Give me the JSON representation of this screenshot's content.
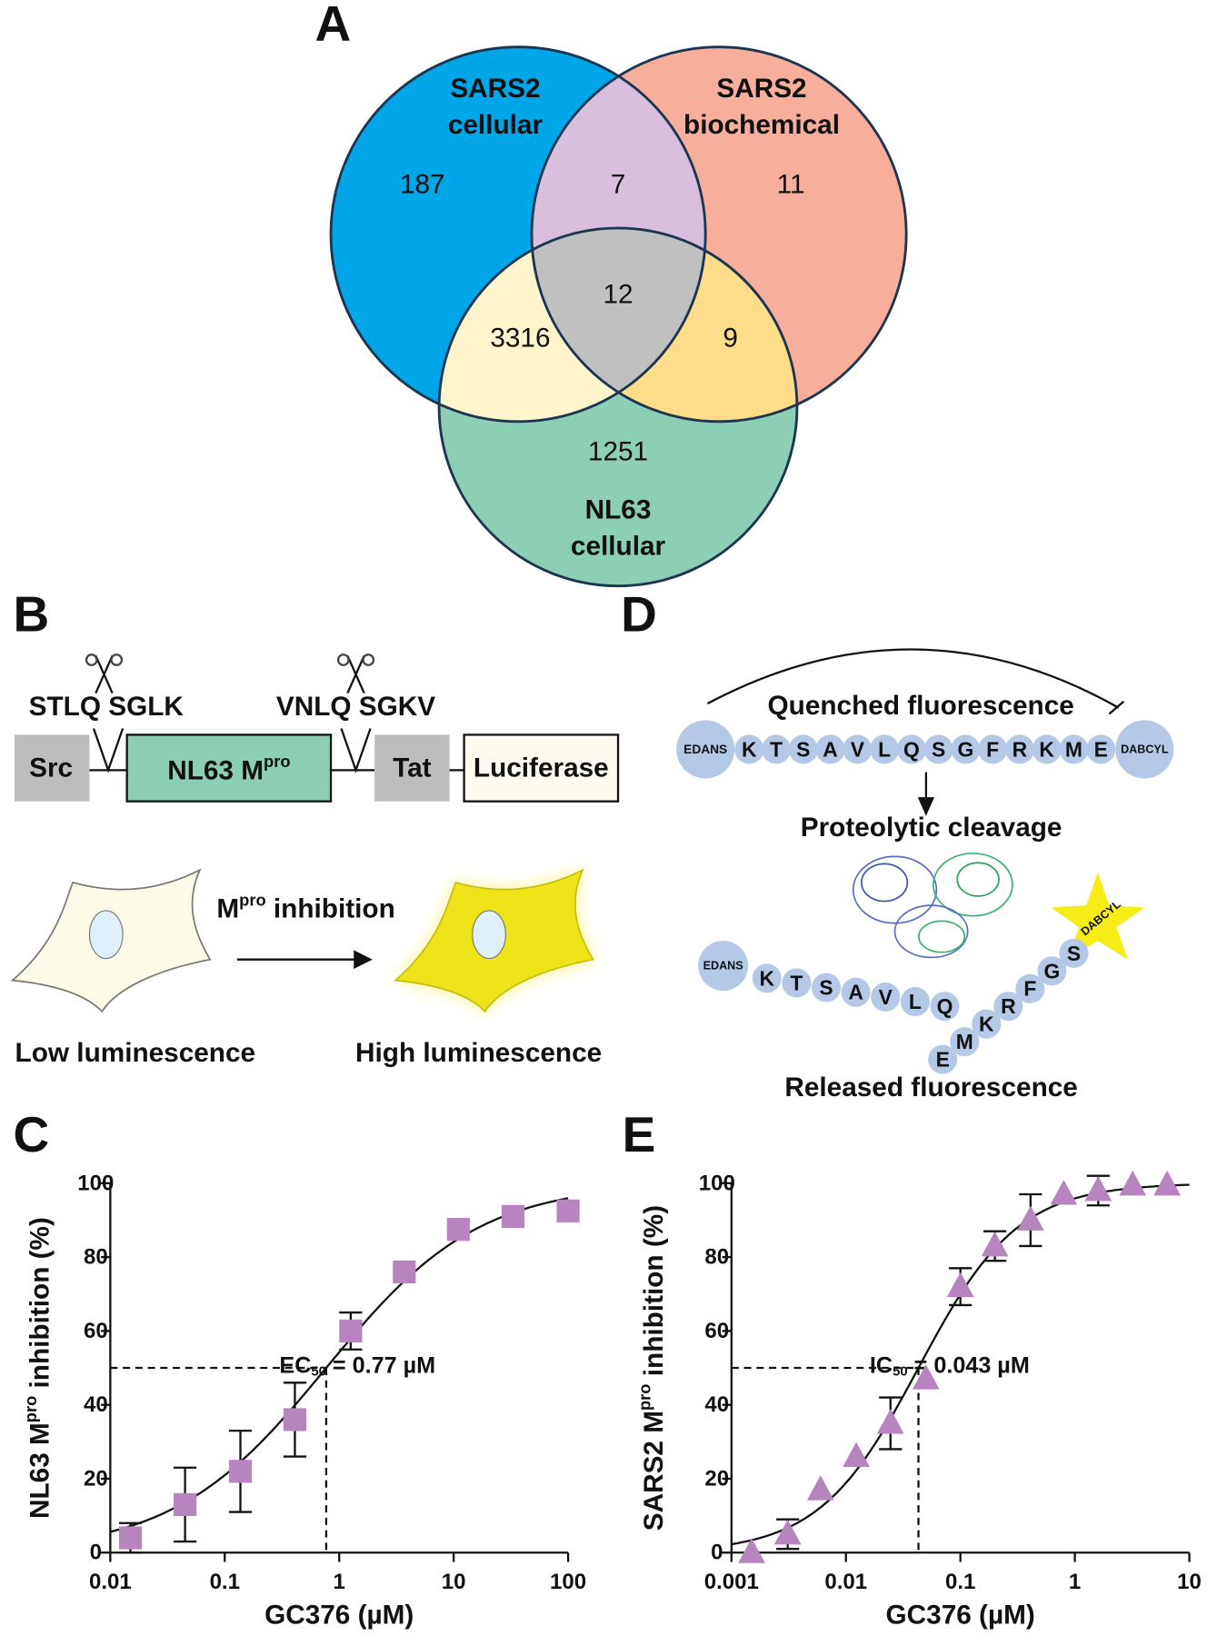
{
  "panel_labels": [
    "A",
    "B",
    "C",
    "D",
    "E"
  ],
  "venn": {
    "sets": [
      {
        "label_lines": [
          "SARS2",
          "cellular"
        ],
        "color": "#00a6e8"
      },
      {
        "label_lines": [
          "SARS2",
          "biochemical"
        ],
        "color": "#f7ae9a"
      },
      {
        "label_lines": [
          "NL63",
          "cellular"
        ],
        "color": "#8ccfb4"
      }
    ],
    "counts": {
      "sars2_cellular_only": 187,
      "sars2_cellular_biochemical": 7,
      "sars2_biochemical_only": 11,
      "all_three": 12,
      "sars2_cellular_nl63": 3316,
      "sars2_biochemical_nl63": 9,
      "nl63_only": 1251
    }
  },
  "panel_b": {
    "sites": [
      "STLQ SGLK",
      "VNLQ SGKV"
    ],
    "boxes": {
      "src": "Src",
      "mpro": {
        "text": "NL63 M",
        "sup": "pro"
      },
      "tat": "Tat",
      "luciferase": "Luciferase"
    },
    "inhibition": {
      "text": "M",
      "sup": "pro",
      "rest": " inhibition"
    },
    "low": "Low luminescence",
    "high": "High luminescence"
  },
  "panel_d": {
    "quenched": "Quenched fluorescence",
    "donor": "EDANS",
    "acceptor": "DABCYL",
    "peptide": [
      "K",
      "T",
      "S",
      "A",
      "V",
      "L",
      "Q",
      "S",
      "G",
      "F",
      "R",
      "K",
      "M",
      "E"
    ],
    "cleavage": "Proteolytic cleavage",
    "released": "Released fluorescence"
  },
  "chart_data": [
    {
      "type": "scatter",
      "marker": "square",
      "color": "#b784c0",
      "log_x": true,
      "xlabel": "GC376 (µM)",
      "ylabel": {
        "text": "NL63 M",
        "sup": "pro",
        "rest": " inhibition (%)"
      },
      "x": [
        0.015,
        0.045,
        0.137,
        0.41,
        1.26,
        3.7,
        11,
        33,
        100
      ],
      "values": [
        4,
        13,
        22,
        36,
        60,
        76,
        87.5,
        91,
        92.5
      ],
      "errors": [
        4,
        10,
        11,
        10,
        5,
        null,
        null,
        null,
        null
      ],
      "xlim": [
        0.01,
        100
      ],
      "xticks": [
        0.01,
        0.1,
        1,
        10,
        100
      ],
      "ylim": [
        0,
        100
      ],
      "yticks": [
        0,
        20,
        40,
        60,
        80,
        100
      ],
      "reference": {
        "x": 0.77,
        "y": 50,
        "label": {
          "text": "EC",
          "sub": "50",
          "rest": " = 0.77 µM"
        }
      },
      "fit": {
        "bottom": 0,
        "top": 100,
        "hill_slope": 0.65
      }
    },
    {
      "type": "scatter",
      "marker": "triangle",
      "color": "#b784c0",
      "log_x": true,
      "xlabel": "GC376 (µM)",
      "ylabel": {
        "text": "SARS2 M",
        "sup": "pro",
        "rest": " inhibition (%)"
      },
      "x": [
        0.0015,
        0.0031,
        0.006,
        0.0123,
        0.0245,
        0.05,
        0.1,
        0.2,
        0.41,
        0.8,
        1.6,
        3.2,
        6.4
      ],
      "values": [
        0,
        5,
        17,
        26,
        35,
        47,
        72,
        83,
        90,
        97,
        98,
        99.5,
        99.5
      ],
      "errors": [
        null,
        4,
        null,
        null,
        7,
        null,
        5,
        4,
        7,
        null,
        4,
        null,
        null
      ],
      "xlim": [
        0.001,
        10
      ],
      "xticks": [
        0.001,
        0.01,
        0.1,
        1,
        10
      ],
      "ylim": [
        0,
        100
      ],
      "yticks": [
        0,
        20,
        40,
        60,
        80,
        100
      ],
      "reference": {
        "x": 0.043,
        "y": 50,
        "label": {
          "text": "IC",
          "sub": "50",
          "rest": " = 0.043 µM"
        }
      },
      "fit": {
        "bottom": 0,
        "top": 100,
        "hill_slope": 1
      }
    }
  ]
}
